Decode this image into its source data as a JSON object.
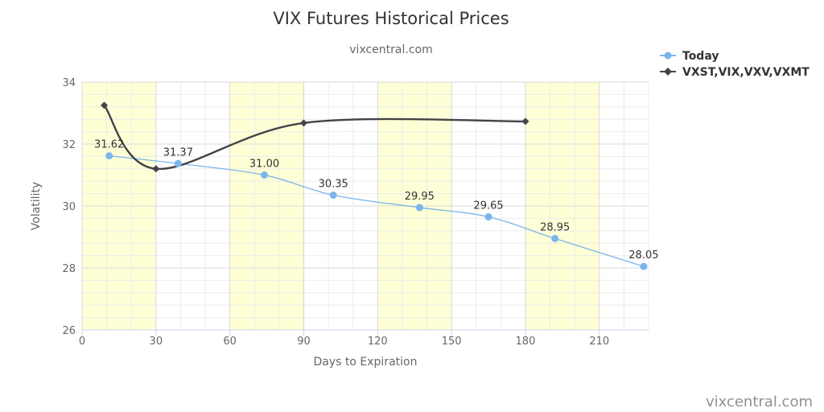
{
  "chart_data": {
    "type": "line",
    "title": "VIX Futures Historical Prices",
    "subtitle": "vixcentral.com",
    "xlabel": "Days to Expiration",
    "ylabel": "Volatility",
    "xlim": [
      0,
      230
    ],
    "ylim": [
      26,
      34
    ],
    "x_ticks": [
      0,
      30,
      60,
      90,
      120,
      150,
      180,
      210
    ],
    "y_ticks": [
      26,
      28,
      30,
      32,
      34
    ],
    "shaded_bands": [
      [
        0,
        30
      ],
      [
        60,
        90
      ],
      [
        120,
        150
      ],
      [
        180,
        210
      ]
    ],
    "grid": true,
    "legend_position": "top-right",
    "series": [
      {
        "name": "Today",
        "color": "#7cb5ec",
        "marker": "circle",
        "x": [
          11,
          39,
          74,
          102,
          137,
          165,
          192,
          228
        ],
        "y": [
          31.62,
          31.37,
          31.0,
          30.35,
          29.95,
          29.65,
          28.95,
          28.05
        ],
        "labels": [
          "31.62",
          "31.37",
          "31.00",
          "30.35",
          "29.95",
          "29.65",
          "28.95",
          "28.05"
        ]
      },
      {
        "name": "VXST,VIX,VXV,VXMT",
        "color": "#434348",
        "marker": "diamond",
        "x": [
          9,
          30,
          90,
          180
        ],
        "y": [
          33.25,
          31.2,
          32.68,
          32.73
        ]
      }
    ]
  },
  "credit": "vixcentral.com"
}
